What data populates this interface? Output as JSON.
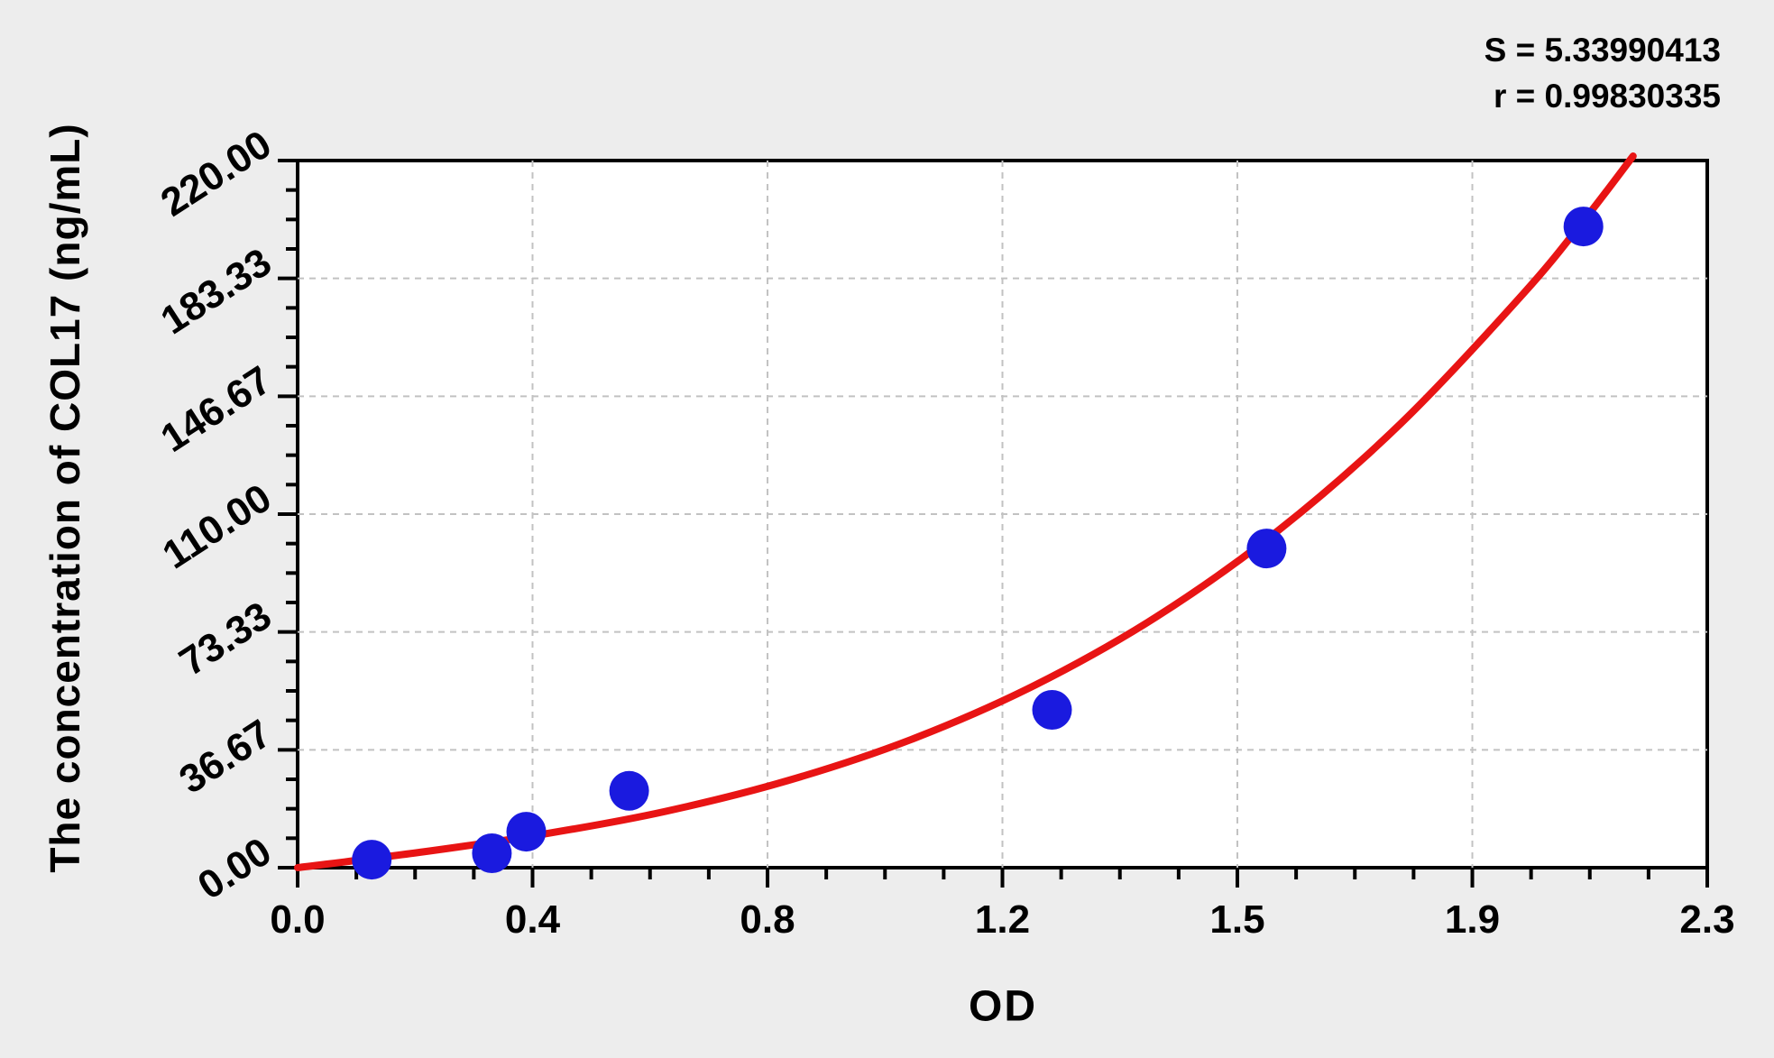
{
  "figure": {
    "background_color": "#ededed",
    "plot_background": "#ffffff",
    "axis_color": "#000000",
    "grid_color": "#c2c2c2",
    "stats": {
      "s_line": "S = 5.33990413",
      "r_line": "r = 0.99830335"
    }
  },
  "chart_data": {
    "type": "scatter",
    "title": "",
    "xlabel": "OD",
    "ylabel": "The concentration of COL17 (ng/mL)",
    "xlim": [
      0,
      2.3
    ],
    "ylim": [
      0,
      220
    ],
    "grid": "dashed at major ticks",
    "legend_position": "none",
    "annotations": [
      "S = 5.33990413",
      "r = 0.99830335"
    ],
    "x_ticks": {
      "values": [
        0,
        0.3833,
        0.7667,
        1.15,
        1.5333,
        1.9167,
        2.3
      ],
      "labels": [
        "0.0",
        "0.4",
        "0.8",
        "1.2",
        "1.5",
        "1.9",
        "2.3"
      ],
      "minor_divisions": 4
    },
    "y_ticks": {
      "values": [
        0,
        36.67,
        73.33,
        110.0,
        146.67,
        183.33,
        220.0
      ],
      "labels": [
        "0.00",
        "36.67",
        "73.33",
        "110.00",
        "146.67",
        "183.33",
        "220.00"
      ],
      "minor_divisions": 4
    },
    "points": [
      {
        "od": 0.121,
        "conc": 2.5
      },
      {
        "od": 0.317,
        "conc": 4.5
      },
      {
        "od": 0.373,
        "conc": 11.2
      },
      {
        "od": 0.541,
        "conc": 23.9
      },
      {
        "od": 1.231,
        "conc": 49.1
      },
      {
        "od": 1.581,
        "conc": 99.3
      },
      {
        "od": 2.098,
        "conc": 199.5
      }
    ],
    "fit_curve_samples": [
      [
        0.0,
        0.0
      ],
      [
        0.2,
        4.8
      ],
      [
        0.4,
        10.4
      ],
      [
        0.6,
        17.5
      ],
      [
        0.8,
        27.1
      ],
      [
        1.0,
        39.8
      ],
      [
        1.2,
        56.5
      ],
      [
        1.4,
        77.9
      ],
      [
        1.6,
        104.9
      ],
      [
        1.8,
        138.2
      ],
      [
        2.0,
        178.6
      ],
      [
        2.1,
        201.7
      ],
      [
        2.179,
        221.4
      ]
    ],
    "colors": {
      "point": "#1a1adf",
      "curve": "#e81414"
    }
  }
}
